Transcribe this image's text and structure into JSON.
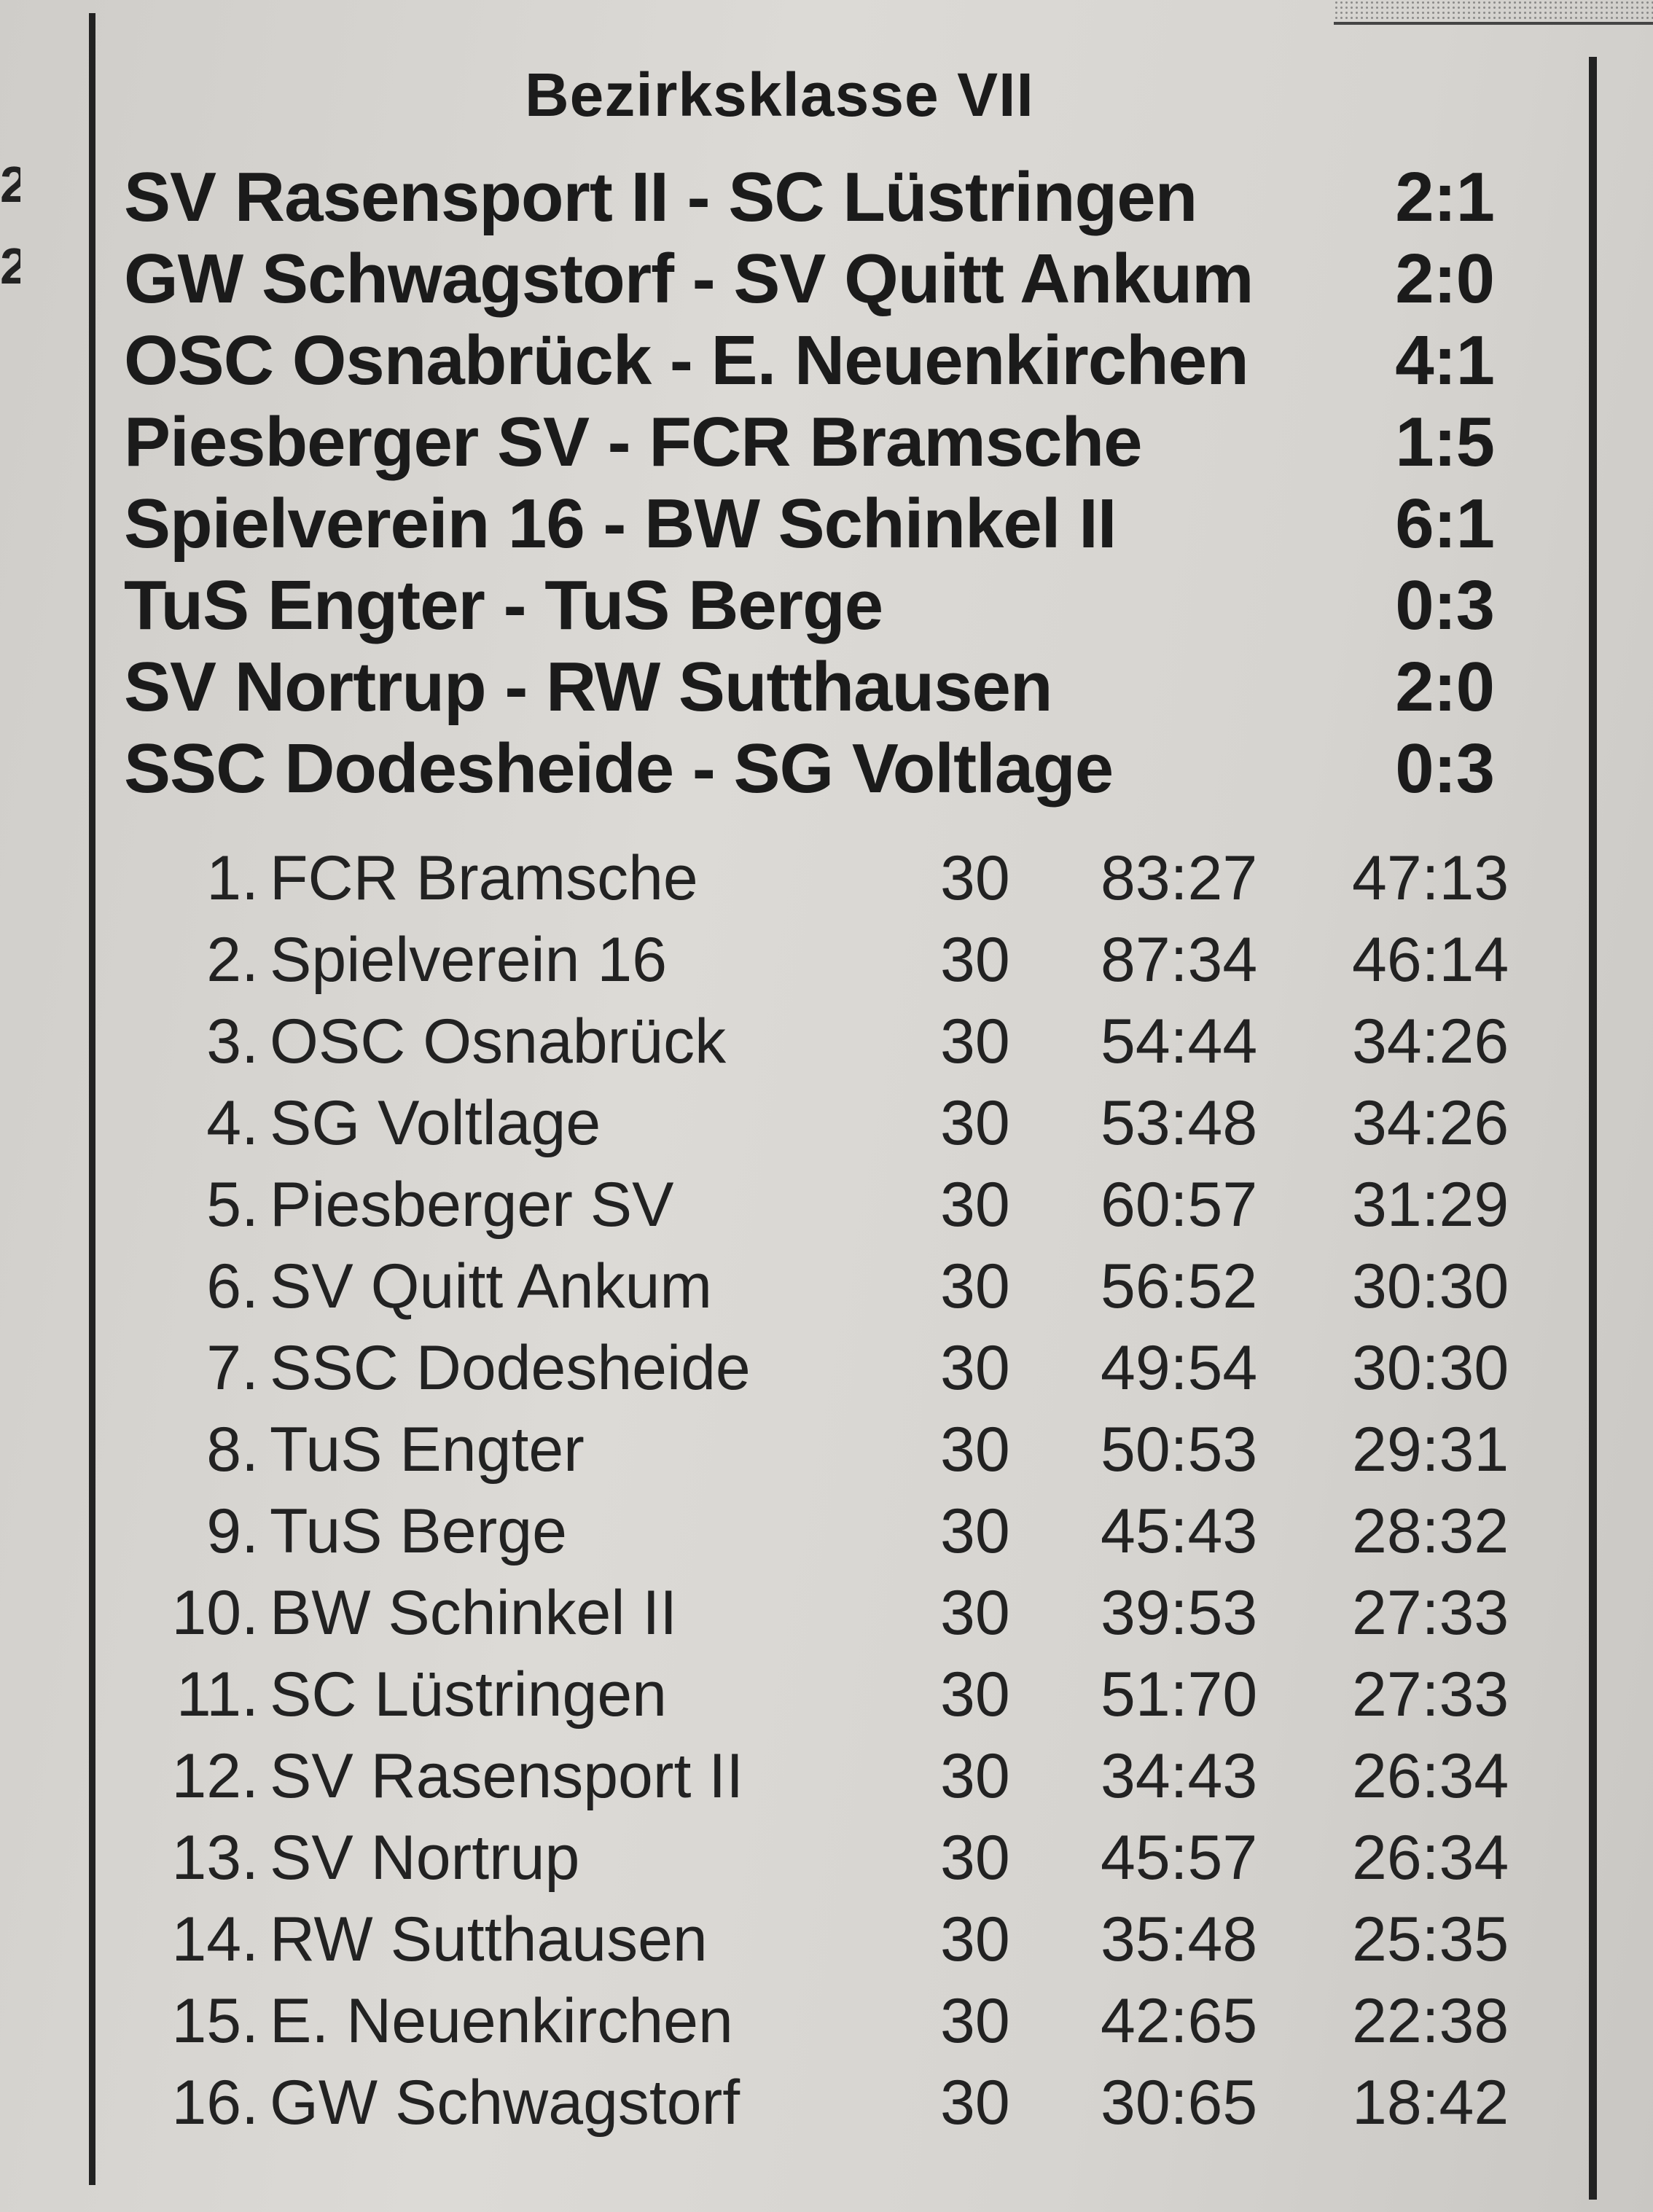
{
  "title": "Bezirksklasse VII",
  "margin_fragments": [
    "2",
    "2"
  ],
  "matches": [
    {
      "teams": "SV Rasensport II - SC Lüstringen",
      "score": "2:1"
    },
    {
      "teams": "GW Schwagstorf - SV Quitt Ankum",
      "score": "2:0"
    },
    {
      "teams": "OSC Osnabrück - E. Neuenkirchen",
      "score": "4:1"
    },
    {
      "teams": "Piesberger SV - FCR Bramsche",
      "score": "1:5"
    },
    {
      "teams": "Spielverein 16 - BW Schinkel II",
      "score": "6:1"
    },
    {
      "teams": "TuS Engter - TuS Berge",
      "score": "0:3"
    },
    {
      "teams": "SV Nortrup - RW Sutthausen",
      "score": "2:0"
    },
    {
      "teams": "SSC Dodesheide - SG Voltlage",
      "score": "0:3"
    }
  ],
  "standings": [
    {
      "pos": "1.",
      "team": "FCR Bramsche",
      "games": "30",
      "goals": "83:27",
      "points": "47:13"
    },
    {
      "pos": "2.",
      "team": "Spielverein 16",
      "games": "30",
      "goals": "87:34",
      "points": "46:14"
    },
    {
      "pos": "3.",
      "team": "OSC Osnabrück",
      "games": "30",
      "goals": "54:44",
      "points": "34:26"
    },
    {
      "pos": "4.",
      "team": "SG Voltlage",
      "games": "30",
      "goals": "53:48",
      "points": "34:26"
    },
    {
      "pos": "5.",
      "team": "Piesberger SV",
      "games": "30",
      "goals": "60:57",
      "points": "31:29"
    },
    {
      "pos": "6.",
      "team": "SV Quitt Ankum",
      "games": "30",
      "goals": "56:52",
      "points": "30:30"
    },
    {
      "pos": "7.",
      "team": "SSC Dodesheide",
      "games": "30",
      "goals": "49:54",
      "points": "30:30"
    },
    {
      "pos": "8.",
      "team": "TuS Engter",
      "games": "30",
      "goals": "50:53",
      "points": "29:31"
    },
    {
      "pos": "9.",
      "team": "TuS Berge",
      "games": "30",
      "goals": "45:43",
      "points": "28:32"
    },
    {
      "pos": "10.",
      "team": "BW Schinkel II",
      "games": "30",
      "goals": "39:53",
      "points": "27:33"
    },
    {
      "pos": "11.",
      "team": "SC Lüstringen",
      "games": "30",
      "goals": "51:70",
      "points": "27:33"
    },
    {
      "pos": "12.",
      "team": "SV Rasensport II",
      "games": "30",
      "goals": "34:43",
      "points": "26:34"
    },
    {
      "pos": "13.",
      "team": "SV Nortrup",
      "games": "30",
      "goals": "45:57",
      "points": "26:34"
    },
    {
      "pos": "14.",
      "team": "RW Sutthausen",
      "games": "30",
      "goals": "35:48",
      "points": "25:35"
    },
    {
      "pos": "15.",
      "team": "E. Neuenkirchen",
      "games": "30",
      "goals": "42:65",
      "points": "22:38"
    },
    {
      "pos": "16.",
      "team": "GW Schwagstorf",
      "games": "30",
      "goals": "30:65",
      "points": "18:42"
    }
  ]
}
